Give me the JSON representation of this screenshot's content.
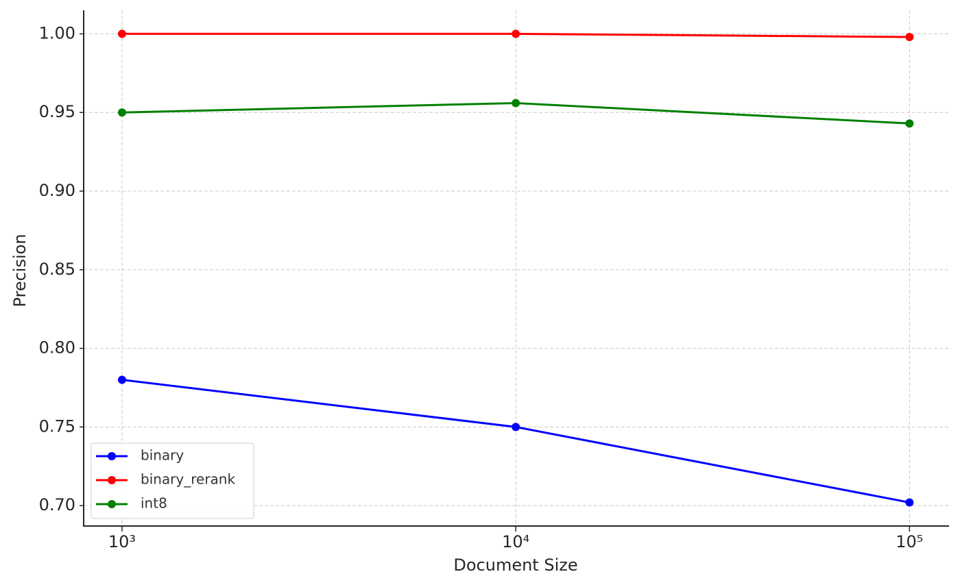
{
  "chart_data": {
    "type": "line",
    "x_label": "Document Size",
    "y_label": "Precision",
    "x": [
      1000,
      10000,
      100000
    ],
    "series": [
      {
        "name": "binary",
        "color": "#0000ff",
        "values": [
          0.78,
          0.75,
          0.702
        ]
      },
      {
        "name": "binary_rerank",
        "color": "#ff0000",
        "values": [
          1.0,
          1.0,
          0.998
        ]
      },
      {
        "name": "int8",
        "color": "#008000",
        "values": [
          0.95,
          0.956,
          0.943
        ]
      }
    ],
    "xscale": "log",
    "xlim": [
      799,
      126000
    ],
    "xticks": [
      {
        "value": 1000,
        "label": "10³"
      },
      {
        "value": 10000,
        "label": "10⁴"
      },
      {
        "value": 100000,
        "label": "10⁵"
      }
    ],
    "ylim": [
      0.687,
      1.015
    ],
    "yticks": [
      {
        "value": 0.7,
        "label": "0.70"
      },
      0.75,
      {
        "value": 0.8,
        "label": "0.80"
      },
      0.85,
      {
        "value": 0.9,
        "label": "0.90"
      },
      0.95,
      {
        "value": 1.0,
        "label": "1.00"
      }
    ],
    "grid": true,
    "legend": "lower left"
  }
}
